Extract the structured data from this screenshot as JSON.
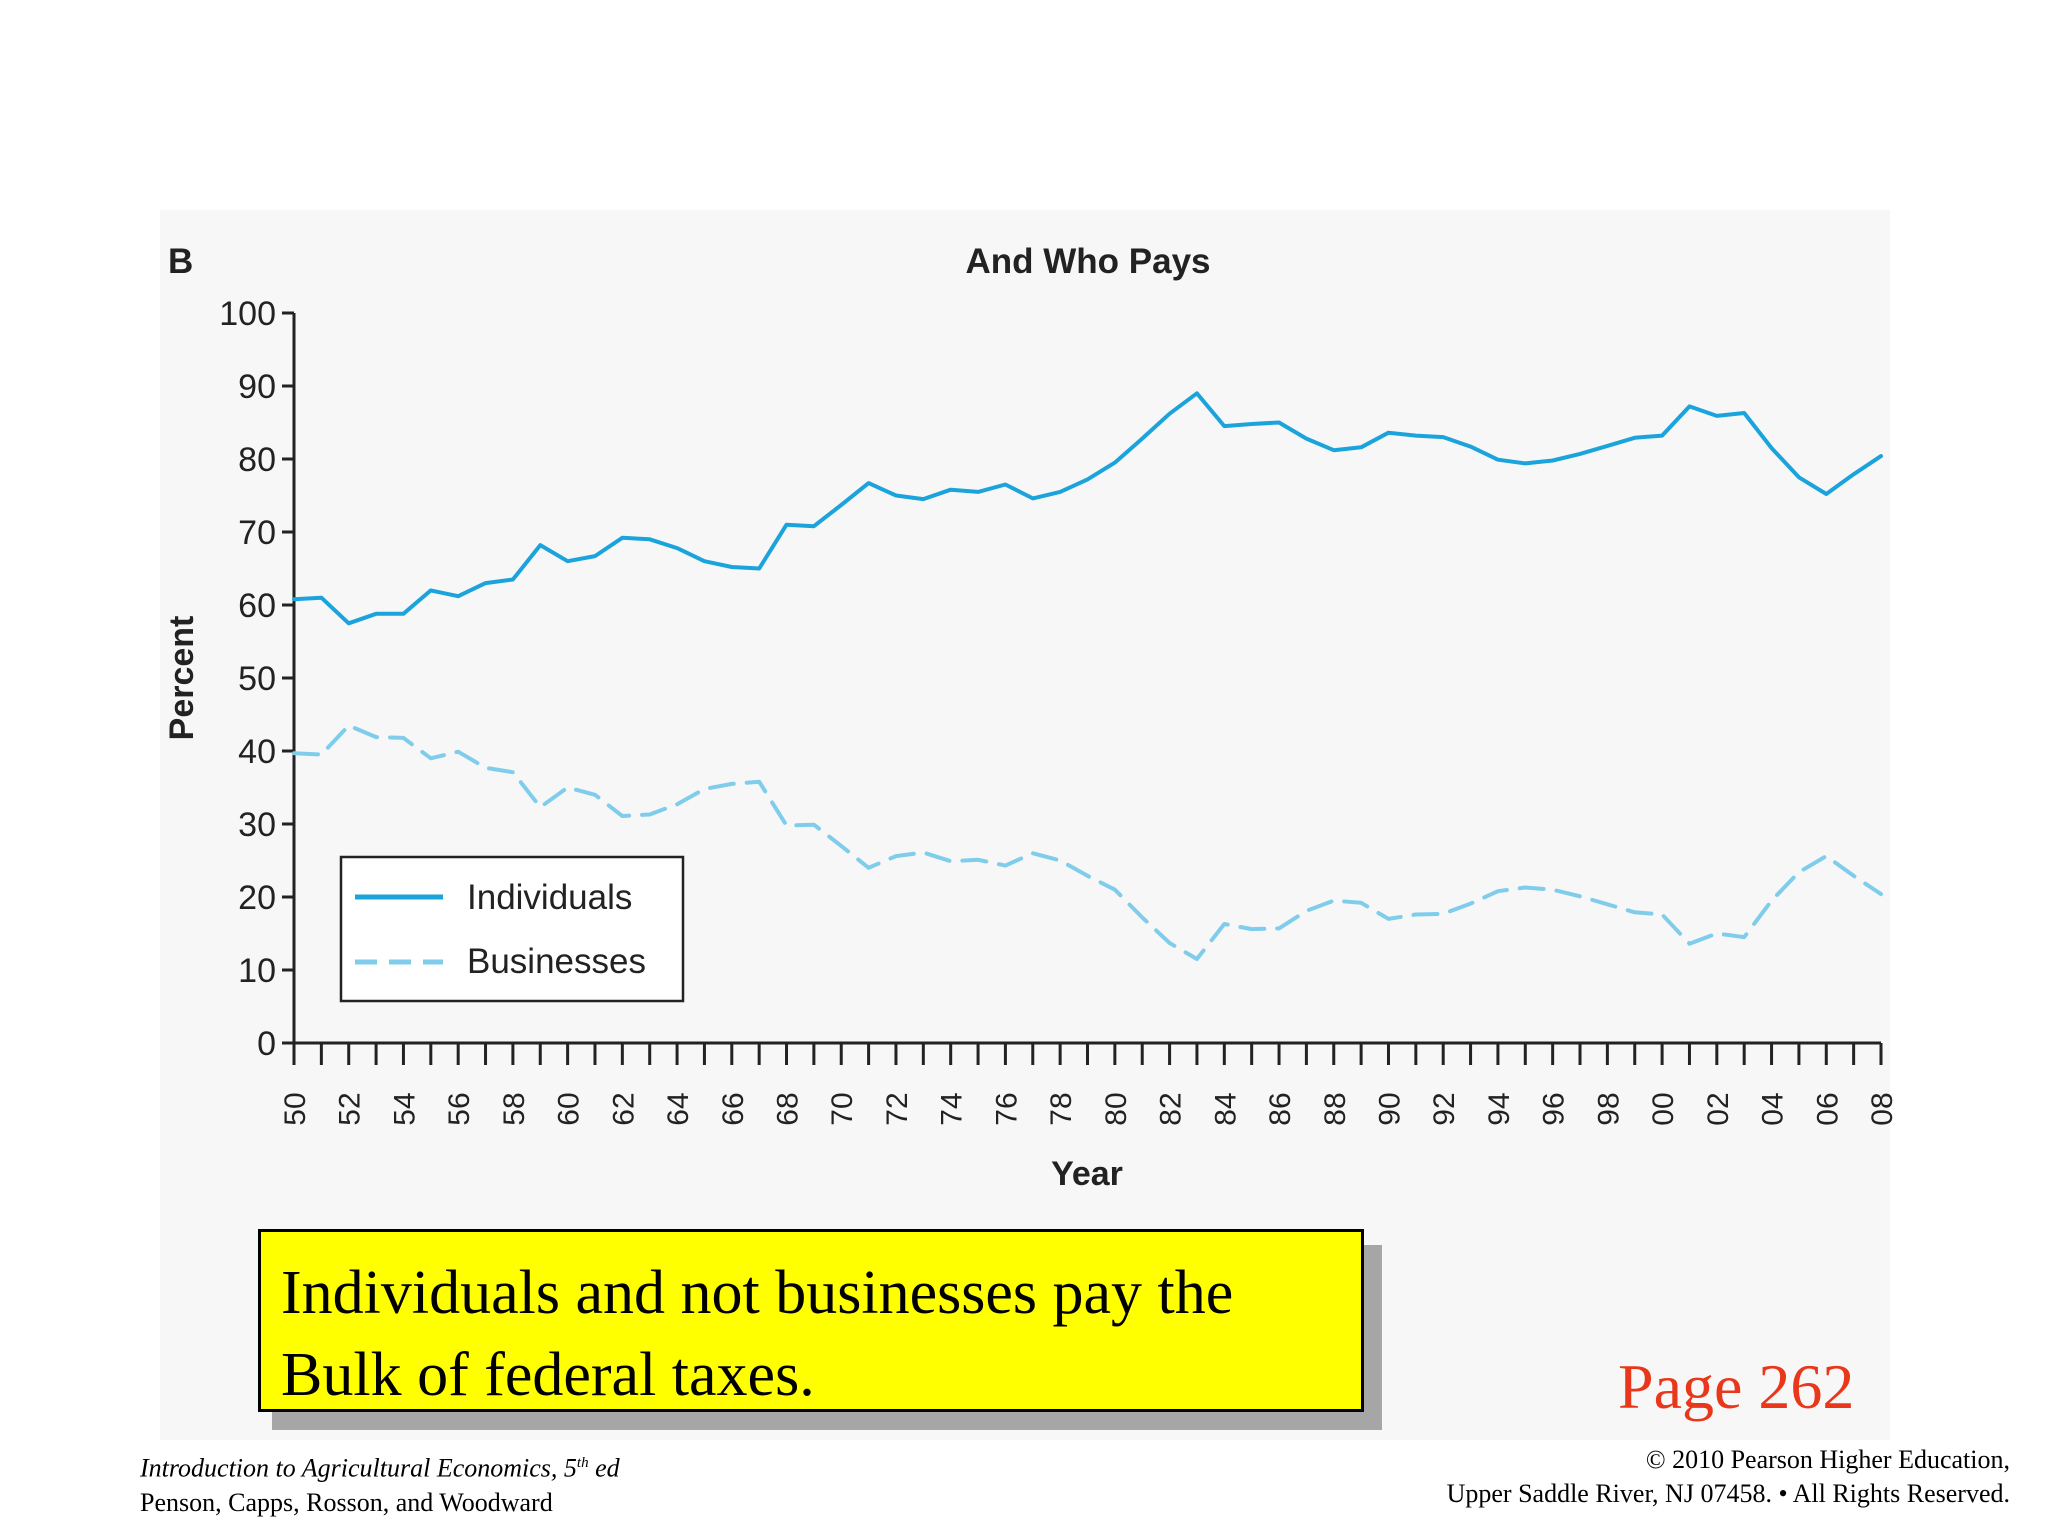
{
  "chart_data": {
    "type": "line",
    "panel_label": "B",
    "title": "And Who Pays",
    "xlabel": "Year",
    "ylabel": "Percent",
    "ylim": [
      0,
      100
    ],
    "yticks": [
      0,
      10,
      20,
      30,
      40,
      50,
      60,
      70,
      80,
      90,
      100
    ],
    "xlim": [
      1950,
      2008
    ],
    "xtick_labels": [
      "50",
      "52",
      "54",
      "56",
      "58",
      "60",
      "62",
      "64",
      "66",
      "68",
      "70",
      "72",
      "74",
      "76",
      "78",
      "80",
      "82",
      "84",
      "86",
      "88",
      "90",
      "92",
      "94",
      "96",
      "98",
      "00",
      "02",
      "04",
      "06",
      "08"
    ],
    "x": [
      1950,
      1951,
      1952,
      1953,
      1954,
      1955,
      1956,
      1957,
      1958,
      1959,
      1960,
      1961,
      1962,
      1963,
      1964,
      1965,
      1966,
      1967,
      1968,
      1969,
      1970,
      1971,
      1972,
      1973,
      1974,
      1975,
      1976,
      1977,
      1978,
      1979,
      1980,
      1981,
      1982,
      1983,
      1984,
      1985,
      1986,
      1987,
      1988,
      1989,
      1990,
      1991,
      1992,
      1993,
      1994,
      1995,
      1996,
      1997,
      1998,
      1999,
      2000,
      2001,
      2002,
      2003,
      2004,
      2005,
      2006,
      2007,
      2008
    ],
    "series": [
      {
        "name": "Individuals",
        "style": "solid",
        "color": "#1ba3dc",
        "values": [
          60.8,
          61.0,
          57.5,
          58.8,
          58.8,
          62.0,
          61.2,
          63.0,
          63.5,
          68.2,
          66.0,
          66.7,
          69.2,
          69.0,
          67.8,
          66.0,
          65.2,
          65.0,
          71.0,
          70.8,
          73.7,
          76.7,
          75.0,
          74.5,
          75.8,
          75.5,
          76.5,
          74.6,
          75.5,
          77.2,
          79.5,
          82.8,
          86.2,
          89.0,
          84.5,
          84.8,
          85.0,
          82.8,
          81.2,
          81.6,
          83.6,
          83.2,
          83.0,
          81.7,
          79.9,
          79.4,
          79.8,
          80.7,
          81.8,
          82.9,
          83.2,
          87.2,
          85.9,
          86.3,
          81.5,
          77.5,
          75.2,
          77.9,
          80.4
        ]
      },
      {
        "name": "Businesses",
        "style": "dashed",
        "color": "#7fcdeb",
        "values": [
          39.7,
          39.5,
          43.5,
          41.9,
          41.8,
          39.0,
          39.9,
          37.7,
          37.1,
          32.3,
          35.0,
          34.0,
          31.1,
          31.3,
          32.7,
          34.8,
          35.5,
          35.8,
          29.8,
          29.9,
          27.0,
          24.0,
          25.6,
          26.1,
          24.9,
          25.1,
          24.3,
          26.0,
          25.0,
          22.9,
          21.0,
          17.2,
          13.7,
          11.5,
          16.3,
          15.6,
          15.7,
          18.1,
          19.5,
          19.2,
          17.0,
          17.6,
          17.7,
          19.1,
          20.8,
          21.3,
          21.0,
          20.1,
          19.0,
          17.9,
          17.6,
          13.6,
          15.0,
          14.5,
          19.5,
          23.4,
          25.6,
          22.9,
          20.4
        ]
      }
    ],
    "legend": {
      "placement": "lower-left",
      "entries": [
        "Individuals",
        "Businesses"
      ]
    },
    "grid": false
  },
  "callout": {
    "line1": "Individuals and not businesses pay the",
    "line2": "Bulk of federal taxes."
  },
  "page_ref": "Page 262",
  "footer_left": {
    "book_title_prefix": "Introduction to Agricultural Economics, 5",
    "book_edition_sup": "th",
    "book_title_suffix": " ed",
    "authors": "Penson, Capps, Rosson, and Woodward"
  },
  "footer_right": {
    "line1": "© 2010 Pearson Higher Education,",
    "line2": "Upper Saddle River, NJ 07458. • All Rights Reserved."
  }
}
